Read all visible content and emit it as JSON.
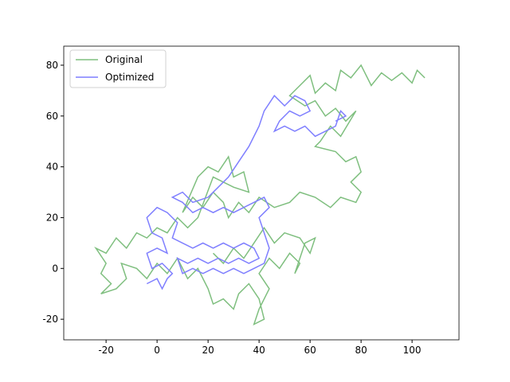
{
  "chart_data": {
    "type": "line",
    "series": [
      {
        "name": "Original",
        "color": "#7fbf7f",
        "x": [
          105,
          102,
          100,
          96,
          92,
          88,
          84,
          80,
          76,
          72,
          70,
          66,
          62,
          60,
          56,
          52,
          58,
          62,
          66,
          70,
          74,
          78,
          72,
          68,
          64,
          62,
          70,
          74,
          78,
          80,
          76,
          80,
          78,
          72,
          68,
          62,
          56,
          52,
          46,
          40,
          36,
          32,
          28,
          26,
          22,
          18,
          14,
          10,
          16,
          20,
          24,
          28,
          30,
          34,
          36,
          30,
          26,
          22,
          16,
          12,
          8,
          4,
          0,
          -4,
          -8,
          -12,
          -16,
          -20,
          -24,
          -20,
          -22,
          -18,
          -22,
          -16,
          -12,
          -14,
          -8,
          -4,
          0,
          4,
          8,
          12,
          16,
          20,
          22,
          26,
          30,
          32,
          36,
          40,
          42,
          38,
          40,
          44,
          40,
          44,
          48,
          52,
          56,
          54,
          58,
          62,
          60,
          56,
          50,
          46,
          42,
          38,
          34,
          30,
          26,
          22
        ],
        "values": [
          75,
          78,
          73,
          77,
          74,
          77,
          72,
          80,
          75,
          78,
          70,
          73,
          69,
          76,
          72,
          68,
          64,
          66,
          60,
          63,
          58,
          62,
          52,
          56,
          50,
          48,
          46,
          42,
          44,
          38,
          34,
          30,
          26,
          28,
          24,
          28,
          30,
          26,
          24,
          28,
          22,
          26,
          20,
          26,
          30,
          24,
          28,
          22,
          36,
          40,
          38,
          44,
          36,
          38,
          30,
          32,
          34,
          36,
          20,
          16,
          20,
          14,
          16,
          12,
          14,
          8,
          12,
          6,
          8,
          2,
          -2,
          -6,
          -10,
          -8,
          -4,
          2,
          0,
          -4,
          2,
          -2,
          4,
          -4,
          0,
          -8,
          -14,
          -12,
          -16,
          -10,
          -6,
          -12,
          -20,
          -22,
          -16,
          -8,
          -2,
          4,
          0,
          6,
          2,
          -2,
          10,
          12,
          6,
          12,
          14,
          10,
          16,
          10,
          4,
          8,
          2,
          6
        ]
      },
      {
        "name": "Optimized",
        "color": "#7f7fff",
        "x": [
          -4,
          0,
          2,
          4,
          6,
          2,
          -2,
          -4,
          0,
          4,
          2,
          -2,
          -4,
          0,
          4,
          8,
          6,
          10,
          14,
          18,
          22,
          26,
          30,
          34,
          38,
          40,
          36,
          32,
          28,
          24,
          20,
          16,
          12,
          8,
          10,
          14,
          18,
          22,
          26,
          30,
          34,
          38,
          42,
          44,
          42,
          40,
          44,
          42,
          38,
          34,
          30,
          26,
          22,
          18,
          14,
          10,
          6,
          10,
          14,
          20,
          24,
          28,
          32,
          36,
          40,
          42,
          46,
          50,
          54,
          58,
          60,
          56,
          52,
          48,
          46,
          50,
          54,
          58,
          62,
          66,
          70,
          72,
          74,
          70
        ],
        "values": [
          -6,
          -4,
          -8,
          -4,
          -2,
          2,
          0,
          6,
          8,
          6,
          12,
          14,
          20,
          24,
          22,
          18,
          12,
          10,
          8,
          10,
          8,
          10,
          8,
          10,
          8,
          4,
          2,
          4,
          2,
          4,
          2,
          4,
          2,
          4,
          -2,
          0,
          -2,
          0,
          -2,
          0,
          -2,
          0,
          2,
          8,
          14,
          20,
          24,
          28,
          26,
          24,
          22,
          24,
          22,
          24,
          22,
          26,
          28,
          30,
          26,
          28,
          32,
          36,
          42,
          48,
          56,
          62,
          68,
          64,
          68,
          66,
          62,
          60,
          62,
          58,
          54,
          56,
          54,
          56,
          52,
          54,
          56,
          62,
          60,
          58
        ]
      }
    ],
    "xlim": [
      -36.6,
      118.4
    ],
    "xticks": [
      -20,
      0,
      20,
      40,
      60,
      80,
      100
    ],
    "ylim": [
      -28.1,
      87.5
    ],
    "yticks": [
      -20,
      0,
      20,
      40,
      60,
      80
    ],
    "legend": "upper left"
  }
}
